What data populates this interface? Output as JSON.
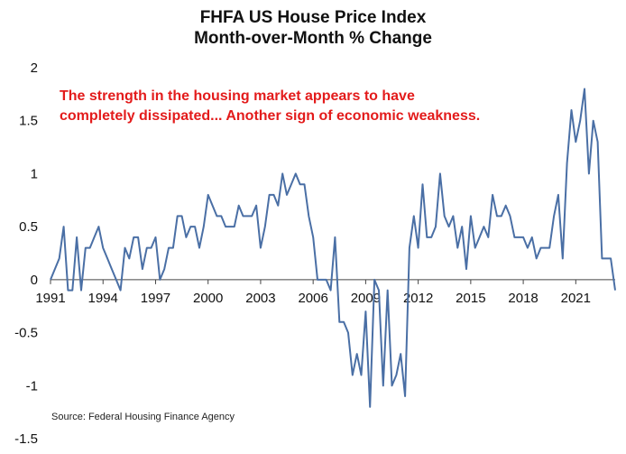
{
  "chart_data": {
    "type": "line",
    "title": "FHFA US House Price Index",
    "subtitle": "Month-over-Month % Change",
    "xlabel": "",
    "ylabel": "",
    "annotation": [
      "The strength in the housing market appears to have",
      "completely dissipated... Another sign of economic weakness."
    ],
    "source": "Source: Federal Housing Finance Agency",
    "ylim": [
      -1.5,
      2
    ],
    "xlim": [
      1991,
      2023.25
    ],
    "y_ticks": [
      2,
      1.5,
      1,
      0.5,
      0,
      -0.5,
      -1,
      -1.5
    ],
    "y_tick_labels": [
      "2",
      "1.5",
      "1",
      "0.5",
      "0",
      "-0.5",
      "-1",
      "-1.5"
    ],
    "x_ticks": [
      1991,
      1994,
      1997,
      2000,
      2003,
      2006,
      2009,
      2012,
      2015,
      2018,
      2021
    ],
    "x_tick_labels": [
      "1991",
      "1994",
      "1997",
      "2000",
      "2003",
      "2006",
      "2009",
      "2012",
      "2015",
      "2018",
      "2021"
    ],
    "grid": false,
    "legend": "none",
    "line_color": "#4a6fa5",
    "annotation_color": "#e31b1b",
    "series": [
      {
        "x": [
          1991.0,
          1991.5,
          1991.75,
          1992.0,
          1992.25,
          1992.5,
          1992.75,
          1993.0,
          1993.25,
          1993.5,
          1993.75,
          1994.0,
          1994.25,
          1994.5,
          1994.75,
          1995.0,
          1995.25,
          1995.5,
          1995.75,
          1996.0,
          1996.25,
          1996.5,
          1996.75,
          1997.0,
          1997.25,
          1997.5,
          1997.75,
          1998.0,
          1998.25,
          1998.5,
          1998.75,
          1999.0,
          1999.25,
          1999.5,
          1999.75,
          2000.0,
          2000.25,
          2000.5,
          2000.75,
          2001.0,
          2001.25,
          2001.5,
          2001.75,
          2002.0,
          2002.25,
          2002.5,
          2002.75,
          2003.0,
          2003.25,
          2003.5,
          2003.75,
          2004.0,
          2004.25,
          2004.5,
          2004.75,
          2005.0,
          2005.25,
          2005.5,
          2005.75,
          2006.0,
          2006.25,
          2006.5,
          2006.75,
          2007.0,
          2007.25,
          2007.5,
          2007.75,
          2008.0,
          2008.25,
          2008.5,
          2008.75,
          2009.0,
          2009.25,
          2009.5,
          2009.75,
          2010.0,
          2010.25,
          2010.5,
          2010.75,
          2011.0,
          2011.25,
          2011.5,
          2011.75,
          2012.0,
          2012.25,
          2012.5,
          2012.75,
          2013.0,
          2013.25,
          2013.5,
          2013.75,
          2014.0,
          2014.25,
          2014.5,
          2014.75,
          2015.0,
          2015.25,
          2015.5,
          2015.75,
          2016.0,
          2016.25,
          2016.5,
          2016.75,
          2017.0,
          2017.25,
          2017.5,
          2017.75,
          2018.0,
          2018.25,
          2018.5,
          2018.75,
          2019.0,
          2019.25,
          2019.5,
          2019.75,
          2020.0,
          2020.25,
          2020.5,
          2020.75,
          2021.0,
          2021.25,
          2021.5,
          2021.75,
          2022.0,
          2022.25,
          2022.5,
          2022.75,
          2023.0,
          2023.25
        ],
        "values": [
          0.0,
          0.2,
          0.5,
          -0.1,
          -0.1,
          0.4,
          -0.1,
          0.3,
          0.3,
          0.4,
          0.5,
          0.3,
          0.2,
          0.1,
          0.0,
          -0.1,
          0.3,
          0.2,
          0.4,
          0.4,
          0.1,
          0.3,
          0.3,
          0.4,
          0.0,
          0.1,
          0.3,
          0.3,
          0.6,
          0.6,
          0.4,
          0.5,
          0.5,
          0.3,
          0.5,
          0.8,
          0.7,
          0.6,
          0.6,
          0.5,
          0.5,
          0.5,
          0.7,
          0.6,
          0.6,
          0.6,
          0.7,
          0.3,
          0.5,
          0.8,
          0.8,
          0.7,
          1.0,
          0.8,
          0.9,
          1.0,
          0.9,
          0.9,
          0.6,
          0.4,
          0.0,
          0.0,
          0.0,
          -0.1,
          0.4,
          -0.4,
          -0.4,
          -0.5,
          -0.9,
          -0.7,
          -0.9,
          -0.3,
          -1.2,
          0.0,
          -0.1,
          -1.0,
          -0.1,
          -1.0,
          -0.9,
          -0.7,
          -1.1,
          0.3,
          0.6,
          0.3,
          0.9,
          0.4,
          0.4,
          0.5,
          1.0,
          0.6,
          0.5,
          0.6,
          0.3,
          0.5,
          0.1,
          0.6,
          0.3,
          0.4,
          0.5,
          0.4,
          0.8,
          0.6,
          0.6,
          0.7,
          0.6,
          0.4,
          0.4,
          0.4,
          0.3,
          0.4,
          0.2,
          0.3,
          0.3,
          0.3,
          0.6,
          0.8,
          0.2,
          1.1,
          1.6,
          1.3,
          1.5,
          1.8,
          1.0,
          1.5,
          1.3,
          0.2,
          0.2,
          0.2,
          -0.1
        ]
      }
    ]
  }
}
